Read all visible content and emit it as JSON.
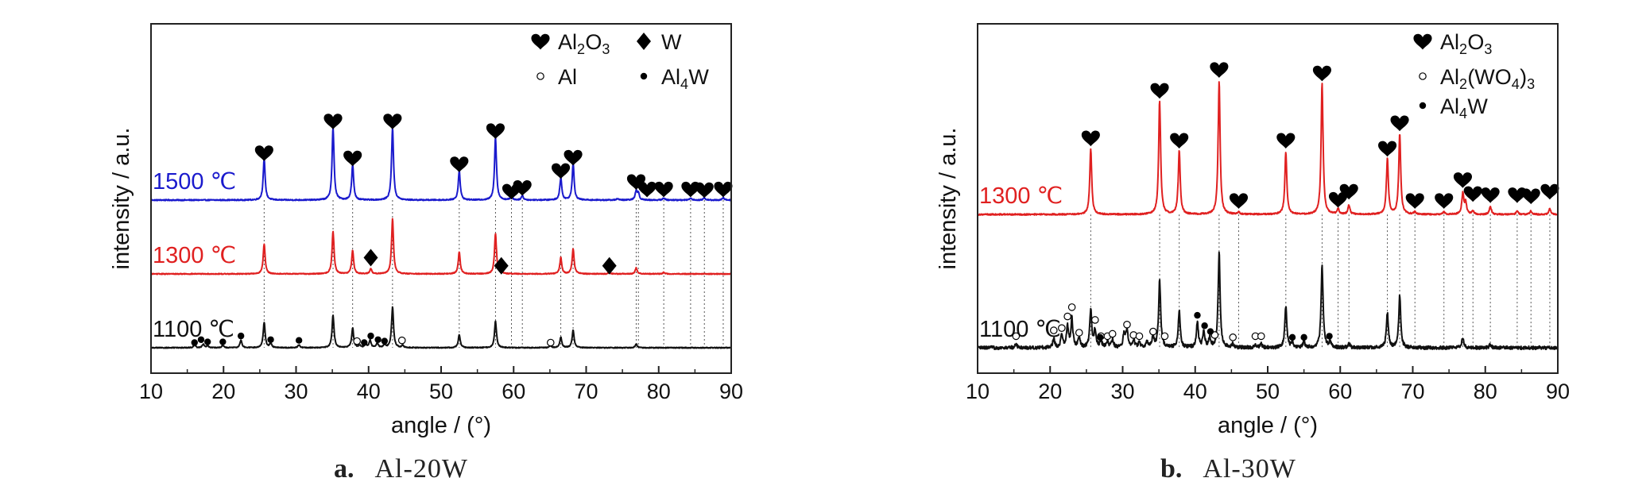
{
  "chart_data": [
    {
      "type": "line",
      "title": "",
      "xlabel": "angle / (°)",
      "ylabel": "intensity / a.u.",
      "xlim": [
        10,
        90
      ],
      "xticks": [
        10,
        20,
        30,
        40,
        50,
        60,
        70,
        80,
        90
      ],
      "grid": false,
      "legend_position": "top-right",
      "caption": {
        "letter": "a.",
        "name": "Al-20W"
      },
      "legend": [
        {
          "symbol": "heart",
          "label": "Al",
          "sub": "2",
          "label2": "O",
          "sub2": "3"
        },
        {
          "symbol": "diamond",
          "label": "W",
          "sub": "",
          "label2": "",
          "sub2": ""
        },
        {
          "symbol": "open-circle",
          "label": "Al",
          "sub": "",
          "label2": "",
          "sub2": ""
        },
        {
          "symbol": "dot",
          "label": "Al",
          "sub": "4",
          "label2": "W",
          "sub2": ""
        }
      ],
      "series": [
        {
          "name": "1500 ℃",
          "color": "#1a1acd",
          "offset": 2.0,
          "noise": 0.015,
          "peaks": [
            [
              25.6,
              0.55
            ],
            [
              35.1,
              0.98
            ],
            [
              37.8,
              0.48
            ],
            [
              43.3,
              0.98
            ],
            [
              52.5,
              0.4
            ],
            [
              57.5,
              0.85
            ],
            [
              59.7,
              0.05
            ],
            [
              61.2,
              0.06
            ],
            [
              66.5,
              0.3
            ],
            [
              68.2,
              0.5
            ],
            [
              74.3,
              0.02
            ],
            [
              76.9,
              0.12
            ],
            [
              77.2,
              0.09
            ],
            [
              80.7,
              0.03
            ],
            [
              84.4,
              0.03
            ],
            [
              86.3,
              0.03
            ],
            [
              88.9,
              0.03
            ]
          ],
          "markers": [
            {
              "symbol": "heart",
              "x": 25.6,
              "h": 0.64
            },
            {
              "symbol": "heart",
              "x": 35.1,
              "h": 1.07
            },
            {
              "symbol": "heart",
              "x": 37.8,
              "h": 0.57
            },
            {
              "symbol": "heart",
              "x": 43.3,
              "h": 1.07
            },
            {
              "symbol": "heart",
              "x": 52.5,
              "h": 0.49
            },
            {
              "symbol": "heart",
              "x": 57.5,
              "h": 0.94
            },
            {
              "symbol": "heart",
              "x": 59.7,
              "h": 0.12
            },
            {
              "symbol": "heart",
              "x": 61.2,
              "h": 0.17
            },
            {
              "symbol": "heart",
              "x": 66.5,
              "h": 0.4
            },
            {
              "symbol": "heart",
              "x": 68.2,
              "h": 0.58
            },
            {
              "symbol": "heart",
              "x": 76.9,
              "h": 0.25
            },
            {
              "symbol": "heart",
              "x": 78.4,
              "h": 0.15
            },
            {
              "symbol": "heart",
              "x": 80.7,
              "h": 0.15
            },
            {
              "symbol": "heart",
              "x": 84.4,
              "h": 0.15
            },
            {
              "symbol": "heart",
              "x": 86.3,
              "h": 0.14
            },
            {
              "symbol": "heart",
              "x": 88.9,
              "h": 0.15
            }
          ]
        },
        {
          "name": "1300 ℃",
          "color": "#e02020",
          "offset": 1.0,
          "noise": 0.012,
          "peaks": [
            [
              25.6,
              0.4
            ],
            [
              35.1,
              0.58
            ],
            [
              37.8,
              0.32
            ],
            [
              40.3,
              0.07
            ],
            [
              43.3,
              0.75
            ],
            [
              52.5,
              0.3
            ],
            [
              57.5,
              0.55
            ],
            [
              58.3,
              0.02
            ],
            [
              66.5,
              0.22
            ],
            [
              68.2,
              0.34
            ],
            [
              73.2,
              0.02
            ],
            [
              76.9,
              0.08
            ],
            [
              80.7,
              0.02
            ]
          ],
          "markers": [
            {
              "symbol": "diamond",
              "x": 40.3,
              "h": 0.22
            },
            {
              "symbol": "diamond",
              "x": 58.3,
              "h": 0.11
            },
            {
              "symbol": "diamond",
              "x": 73.2,
              "h": 0.11
            }
          ]
        },
        {
          "name": "1100 ℃",
          "color": "#111111",
          "offset": 0.0,
          "noise": 0.012,
          "peaks": [
            [
              16.0,
              0.04
            ],
            [
              17.2,
              0.05
            ],
            [
              17.8,
              0.03
            ],
            [
              19.9,
              0.03
            ],
            [
              22.4,
              0.1
            ],
            [
              25.6,
              0.34
            ],
            [
              26.5,
              0.06
            ],
            [
              30.4,
              0.04
            ],
            [
              35.1,
              0.44
            ],
            [
              37.8,
              0.27
            ],
            [
              38.8,
              0.03
            ],
            [
              39.6,
              0.05
            ],
            [
              40.2,
              0.1
            ],
            [
              41.2,
              0.06
            ],
            [
              42.2,
              0.04
            ],
            [
              43.3,
              0.55
            ],
            [
              44.7,
              0.03
            ],
            [
              52.5,
              0.18
            ],
            [
              57.5,
              0.36
            ],
            [
              65.1,
              0.03
            ],
            [
              66.5,
              0.14
            ],
            [
              68.2,
              0.24
            ],
            [
              76.9,
              0.05
            ]
          ],
          "markers": [
            {
              "symbol": "dot",
              "x": 16.0,
              "h": 0.07
            },
            {
              "symbol": "dot",
              "x": 16.9,
              "h": 0.11
            },
            {
              "symbol": "dot",
              "x": 17.8,
              "h": 0.08
            },
            {
              "symbol": "dot",
              "x": 19.9,
              "h": 0.08
            },
            {
              "symbol": "dot",
              "x": 22.4,
              "h": 0.16
            },
            {
              "symbol": "dot",
              "x": 26.5,
              "h": 0.11
            },
            {
              "symbol": "dot",
              "x": 30.4,
              "h": 0.1
            },
            {
              "symbol": "dot",
              "x": 39.4,
              "h": 0.07
            },
            {
              "symbol": "dot",
              "x": 40.3,
              "h": 0.16
            },
            {
              "symbol": "dot",
              "x": 41.3,
              "h": 0.11
            },
            {
              "symbol": "dot",
              "x": 42.2,
              "h": 0.09
            },
            {
              "symbol": "ring",
              "x": 38.4,
              "h": 0.09
            },
            {
              "symbol": "ring",
              "x": 44.6,
              "h": 0.1
            },
            {
              "symbol": "ring",
              "x": 65.1,
              "h": 0.07
            }
          ]
        }
      ],
      "reference_lines": [
        25.6,
        35.1,
        37.8,
        43.3,
        52.5,
        57.5,
        59.7,
        61.2,
        66.5,
        68.2,
        76.9,
        77.2,
        80.7,
        84.4,
        86.3,
        88.9
      ]
    },
    {
      "type": "line",
      "title": "",
      "xlabel": "angle / (°)",
      "ylabel": "intensity / a.u.",
      "xlim": [
        10,
        90
      ],
      "xticks": [
        10,
        20,
        30,
        40,
        50,
        60,
        70,
        80,
        90
      ],
      "grid": false,
      "legend_position": "top-right",
      "caption": {
        "letter": "b.",
        "name": "Al-30W"
      },
      "legend": [
        {
          "symbol": "heart",
          "label": "Al",
          "sub": "2",
          "label2": "O",
          "sub2": "3",
          "label3": "",
          "sub3": ""
        },
        {
          "symbol": "open-circle",
          "label": "Al",
          "sub": "2",
          "label2": "(WO",
          "sub2": "4",
          "label3": ")",
          "sub3": "3"
        },
        {
          "symbol": "dot",
          "label": "Al",
          "sub": "4",
          "label2": "W",
          "sub2": "",
          "label3": "",
          "sub3": ""
        }
      ],
      "series": [
        {
          "name": "1300 ℃",
          "color": "#e02020",
          "offset": 1.15,
          "noise": 0.012,
          "peaks": [
            [
              25.6,
              0.56
            ],
            [
              35.1,
              0.98
            ],
            [
              37.8,
              0.55
            ],
            [
              43.3,
              1.15
            ],
            [
              46.0,
              0.02
            ],
            [
              52.5,
              0.54
            ],
            [
              57.5,
              1.13
            ],
            [
              59.7,
              0.05
            ],
            [
              61.2,
              0.08
            ],
            [
              66.5,
              0.48
            ],
            [
              68.2,
              0.7
            ],
            [
              70.3,
              0.02
            ],
            [
              74.3,
              0.02
            ],
            [
              76.9,
              0.18
            ],
            [
              77.3,
              0.1
            ],
            [
              78.3,
              0.03
            ],
            [
              80.7,
              0.07
            ],
            [
              84.4,
              0.03
            ],
            [
              86.3,
              0.03
            ],
            [
              88.9,
              0.05
            ]
          ],
          "markers": [
            {
              "symbol": "heart",
              "x": 25.6,
              "h": 0.66
            },
            {
              "symbol": "heart",
              "x": 35.1,
              "h": 1.07
            },
            {
              "symbol": "heart",
              "x": 37.8,
              "h": 0.64
            },
            {
              "symbol": "heart",
              "x": 43.3,
              "h": 1.25
            },
            {
              "symbol": "heart",
              "x": 46.0,
              "h": 0.12
            },
            {
              "symbol": "heart",
              "x": 52.5,
              "h": 0.64
            },
            {
              "symbol": "heart",
              "x": 57.5,
              "h": 1.22
            },
            {
              "symbol": "heart",
              "x": 59.7,
              "h": 0.13
            },
            {
              "symbol": "heart",
              "x": 61.2,
              "h": 0.2
            },
            {
              "symbol": "heart",
              "x": 66.5,
              "h": 0.57
            },
            {
              "symbol": "heart",
              "x": 68.2,
              "h": 0.79
            },
            {
              "symbol": "heart",
              "x": 70.3,
              "h": 0.12
            },
            {
              "symbol": "heart",
              "x": 74.3,
              "h": 0.12
            },
            {
              "symbol": "heart",
              "x": 76.9,
              "h": 0.3
            },
            {
              "symbol": "heart",
              "x": 78.3,
              "h": 0.18
            },
            {
              "symbol": "heart",
              "x": 80.7,
              "h": 0.17
            },
            {
              "symbol": "heart",
              "x": 84.4,
              "h": 0.17
            },
            {
              "symbol": "heart",
              "x": 86.3,
              "h": 0.16
            },
            {
              "symbol": "heart",
              "x": 88.9,
              "h": 0.2
            }
          ]
        },
        {
          "name": "1100 ℃",
          "color": "#111111",
          "offset": 0.0,
          "noise": 0.03,
          "peaks": [
            [
              15.3,
              0.03
            ],
            [
              20.5,
              0.08
            ],
            [
              21.6,
              0.11
            ],
            [
              22.4,
              0.18
            ],
            [
              23.0,
              0.25
            ],
            [
              24.0,
              0.08
            ],
            [
              25.6,
              0.32
            ],
            [
              26.2,
              0.15
            ],
            [
              27.0,
              0.06
            ],
            [
              27.9,
              0.05
            ],
            [
              28.6,
              0.07
            ],
            [
              30.2,
              0.12
            ],
            [
              30.6,
              0.16
            ],
            [
              31.5,
              0.07
            ],
            [
              32.3,
              0.05
            ],
            [
              33.4,
              0.05
            ],
            [
              34.2,
              0.1
            ],
            [
              35.1,
              0.58
            ],
            [
              37.8,
              0.32
            ],
            [
              40.3,
              0.22
            ],
            [
              41.2,
              0.14
            ],
            [
              42.0,
              0.08
            ],
            [
              43.3,
              0.82
            ],
            [
              45.2,
              0.03
            ],
            [
              48.3,
              0.03
            ],
            [
              49.1,
              0.03
            ],
            [
              52.5,
              0.36
            ],
            [
              53.4,
              0.05
            ],
            [
              55.0,
              0.05
            ],
            [
              57.5,
              0.72
            ],
            [
              58.6,
              0.05
            ],
            [
              61.2,
              0.04
            ],
            [
              66.5,
              0.3
            ],
            [
              68.2,
              0.45
            ],
            [
              76.9,
              0.09
            ],
            [
              80.7,
              0.03
            ]
          ],
          "markers": [
            {
              "symbol": "ring",
              "x": 15.3,
              "h": 0.1
            },
            {
              "symbol": "ring",
              "x": 20.5,
              "h": 0.15
            },
            {
              "symbol": "ring",
              "x": 21.6,
              "h": 0.17
            },
            {
              "symbol": "ring",
              "x": 22.4,
              "h": 0.27
            },
            {
              "symbol": "ring",
              "x": 23.0,
              "h": 0.35
            },
            {
              "symbol": "ring",
              "x": 24.0,
              "h": 0.13
            },
            {
              "symbol": "ring",
              "x": 26.2,
              "h": 0.24
            },
            {
              "symbol": "ring",
              "x": 27.0,
              "h": 0.1
            },
            {
              "symbol": "ring",
              "x": 27.9,
              "h": 0.1
            },
            {
              "symbol": "ring",
              "x": 28.6,
              "h": 0.12
            },
            {
              "symbol": "ring",
              "x": 30.6,
              "h": 0.2
            },
            {
              "symbol": "ring",
              "x": 31.5,
              "h": 0.11
            },
            {
              "symbol": "ring",
              "x": 32.3,
              "h": 0.1
            },
            {
              "symbol": "ring",
              "x": 34.2,
              "h": 0.14
            },
            {
              "symbol": "ring",
              "x": 35.8,
              "h": 0.1
            },
            {
              "symbol": "ring",
              "x": 42.7,
              "h": 0.11
            },
            {
              "symbol": "ring",
              "x": 45.2,
              "h": 0.09
            },
            {
              "symbol": "ring",
              "x": 48.3,
              "h": 0.1
            },
            {
              "symbol": "ring",
              "x": 49.1,
              "h": 0.1
            },
            {
              "symbol": "dot",
              "x": 26.9,
              "h": 0.09
            },
            {
              "symbol": "dot",
              "x": 40.3,
              "h": 0.28
            },
            {
              "symbol": "dot",
              "x": 41.3,
              "h": 0.19
            },
            {
              "symbol": "dot",
              "x": 42.1,
              "h": 0.14
            },
            {
              "symbol": "dot",
              "x": 53.4,
              "h": 0.09
            },
            {
              "symbol": "dot",
              "x": 55.0,
              "h": 0.09
            },
            {
              "symbol": "dot",
              "x": 58.5,
              "h": 0.1
            }
          ]
        }
      ],
      "reference_lines": [
        25.6,
        35.1,
        37.8,
        43.3,
        46.0,
        52.5,
        57.5,
        59.7,
        61.2,
        66.5,
        68.2,
        70.3,
        74.3,
        76.9,
        78.3,
        80.7,
        84.4,
        86.3,
        88.9
      ]
    }
  ]
}
